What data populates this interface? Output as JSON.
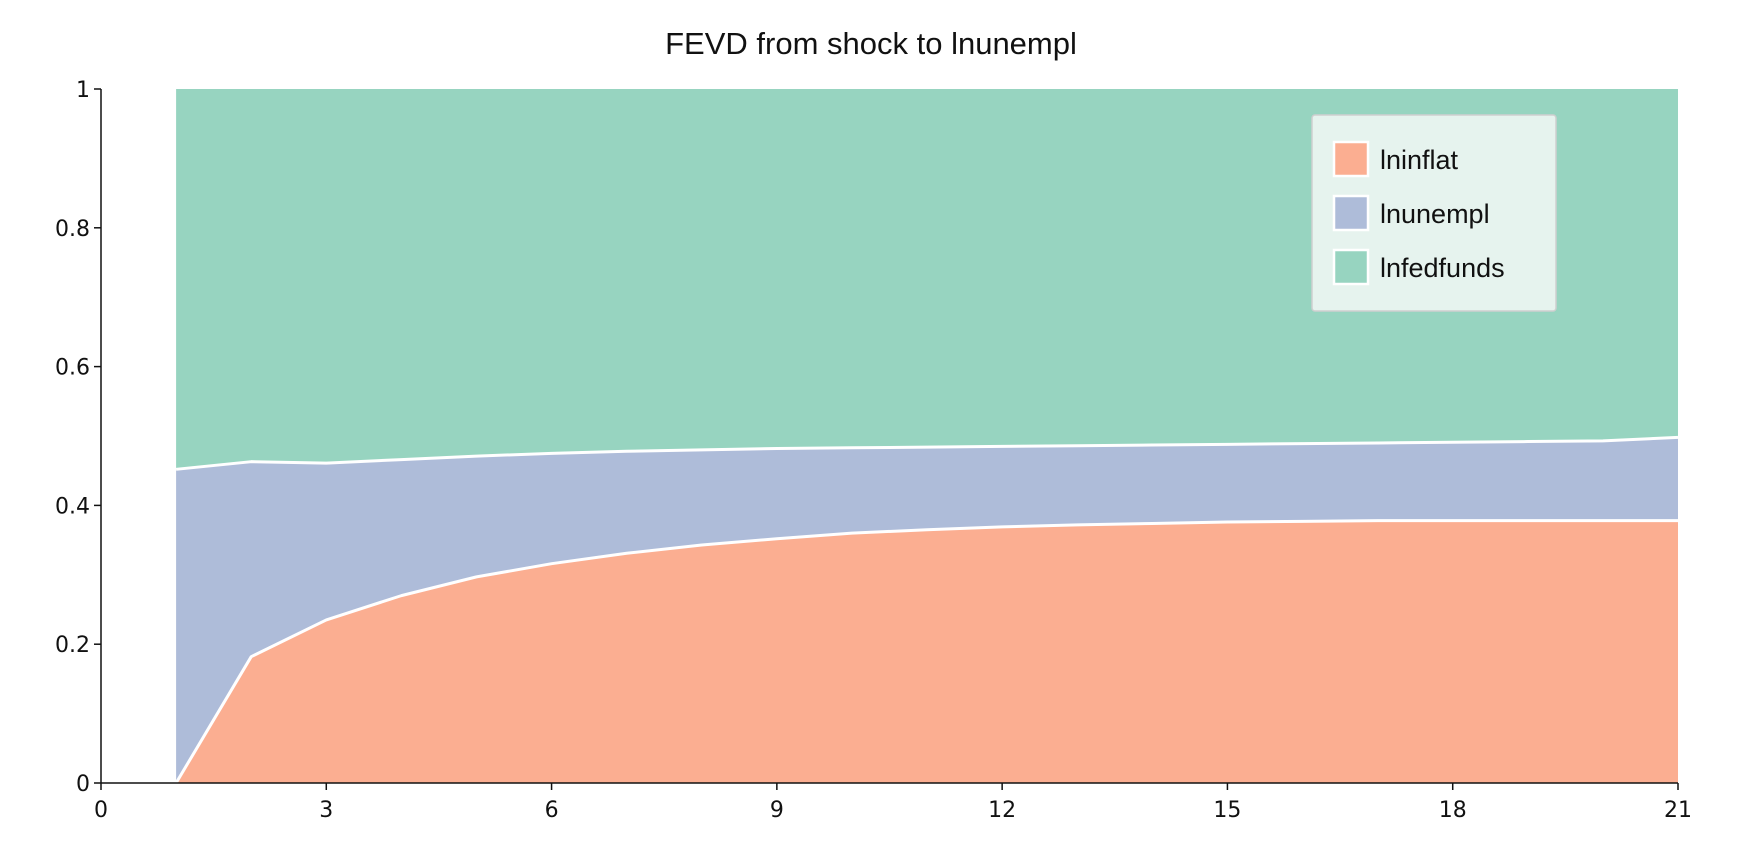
{
  "chart_data": {
    "type": "area",
    "stacked": true,
    "title": "FEVD from shock to lnunempl",
    "xlabel": "",
    "ylabel": "",
    "xlim": [
      0,
      21
    ],
    "ylim": [
      0,
      1
    ],
    "xticks": [
      0,
      3,
      6,
      9,
      12,
      15,
      18,
      21
    ],
    "yticks": [
      0,
      0.2,
      0.4,
      0.6,
      0.8,
      1
    ],
    "ytick_labels": [
      "0",
      "0.2",
      "0.4",
      "0.6",
      "0.8",
      "1"
    ],
    "grid": false,
    "legend_position": "top-right",
    "x": [
      1,
      2,
      3,
      4,
      5,
      6,
      7,
      8,
      9,
      10,
      11,
      12,
      13,
      14,
      15,
      16,
      17,
      18,
      19,
      20,
      21
    ],
    "series": [
      {
        "name": "lninflat",
        "color": "#fbae91",
        "values": [
          0.0,
          0.182,
          0.235,
          0.27,
          0.297,
          0.316,
          0.331,
          0.343,
          0.352,
          0.36,
          0.365,
          0.369,
          0.372,
          0.374,
          0.376,
          0.377,
          0.378,
          0.378,
          0.378,
          0.378,
          0.378
        ]
      },
      {
        "name": "lnunempl",
        "color": "#aebcd9",
        "values": [
          0.452,
          0.281,
          0.226,
          0.196,
          0.174,
          0.159,
          0.147,
          0.137,
          0.13,
          0.123,
          0.119,
          0.116,
          0.114,
          0.113,
          0.112,
          0.112,
          0.112,
          0.113,
          0.114,
          0.115,
          0.12
        ]
      },
      {
        "name": "lnfedfunds",
        "color": "#97d4c0",
        "values": [
          0.548,
          0.537,
          0.539,
          0.534,
          0.529,
          0.525,
          0.522,
          0.52,
          0.518,
          0.517,
          0.516,
          0.515,
          0.514,
          0.513,
          0.512,
          0.511,
          0.51,
          0.509,
          0.508,
          0.507,
          0.502
        ]
      }
    ],
    "legend_background": "#e6f3ee",
    "axis_color": "#111111",
    "separator_color": "#ffffff"
  }
}
